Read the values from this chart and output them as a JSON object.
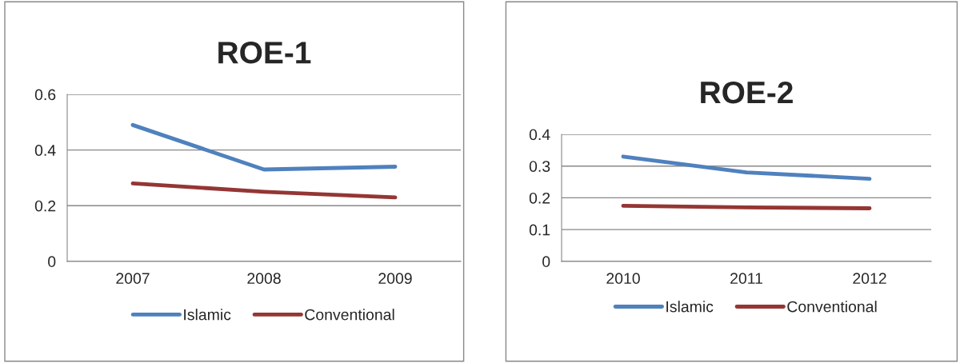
{
  "chart_data": [
    {
      "type": "line",
      "title": "ROE-1",
      "categories": [
        "2007",
        "2008",
        "2009"
      ],
      "series": [
        {
          "name": "Islamic",
          "color": "#4f81bd",
          "values": [
            0.49,
            0.33,
            0.34
          ]
        },
        {
          "name": "Conventional",
          "color": "#943634",
          "values": [
            0.28,
            0.25,
            0.23
          ]
        }
      ],
      "ylim": [
        0,
        0.6
      ],
      "yticks": [
        0,
        0.2,
        0.4,
        0.6
      ],
      "grid": "y",
      "legend": "bottom"
    },
    {
      "type": "line",
      "title": "ROE-2",
      "categories": [
        "2010",
        "2011",
        "2012"
      ],
      "series": [
        {
          "name": "Islamic",
          "color": "#4f81bd",
          "values": [
            0.33,
            0.28,
            0.26
          ]
        },
        {
          "name": "Conventional",
          "color": "#943634",
          "values": [
            0.175,
            0.17,
            0.167
          ]
        }
      ],
      "ylim": [
        0,
        0.4
      ],
      "yticks": [
        0,
        0.1,
        0.2,
        0.3,
        0.4
      ],
      "grid": "y",
      "legend": "bottom"
    }
  ]
}
